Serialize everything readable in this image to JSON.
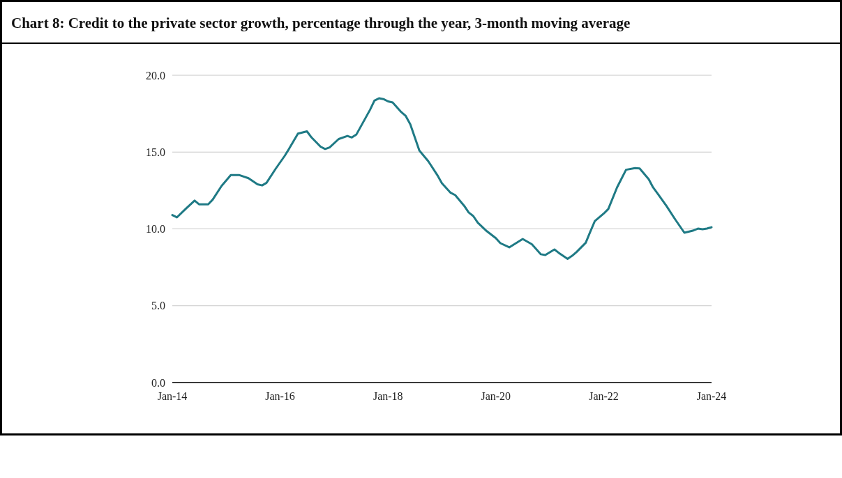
{
  "chart_data": {
    "type": "line",
    "title": "Chart 8: Credit to the private sector growth, percentage through the year, 3-month moving average",
    "x": [
      "2014-01",
      "2014-02",
      "2014-04",
      "2014-06",
      "2014-07",
      "2014-09",
      "2014-10",
      "2014-12",
      "2015-02",
      "2015-04",
      "2015-06",
      "2015-08",
      "2015-09",
      "2015-10",
      "2015-12",
      "2016-02",
      "2016-03",
      "2016-05",
      "2016-07",
      "2016-08",
      "2016-10",
      "2016-11",
      "2016-12",
      "2017-02",
      "2017-04",
      "2017-05",
      "2017-06",
      "2017-09",
      "2017-10",
      "2017-11",
      "2017-12",
      "2018-01",
      "2018-02",
      "2018-04",
      "2018-05",
      "2018-06",
      "2018-08",
      "2018-10",
      "2018-12",
      "2019-01",
      "2019-03",
      "2019-04",
      "2019-06",
      "2019-07",
      "2019-08",
      "2019-09",
      "2019-11",
      "2020-01",
      "2020-02",
      "2020-04",
      "2020-07",
      "2020-09",
      "2020-11",
      "2020-12",
      "2021-02",
      "2021-03",
      "2021-05",
      "2021-06",
      "2021-07",
      "2021-09",
      "2021-10",
      "2021-11",
      "2022-01",
      "2022-02",
      "2022-04",
      "2022-06",
      "2022-08",
      "2022-09",
      "2022-11",
      "2022-12",
      "2023-01",
      "2023-03",
      "2023-05",
      "2023-07",
      "2023-09",
      "2023-10",
      "2023-11",
      "2023-12",
      "2024-01"
    ],
    "series": [
      {
        "color": "#1f7a85",
        "values": [
          10.9,
          10.75,
          11.3,
          11.84,
          11.6,
          11.6,
          11.9,
          12.8,
          13.5,
          13.5,
          13.3,
          12.9,
          12.83,
          13.0,
          13.9,
          14.75,
          15.2,
          16.2,
          16.35,
          15.95,
          15.35,
          15.2,
          15.3,
          15.85,
          16.05,
          15.95,
          16.15,
          17.75,
          18.35,
          18.5,
          18.45,
          18.3,
          18.23,
          17.6,
          17.35,
          16.8,
          15.1,
          14.4,
          13.5,
          12.97,
          12.35,
          12.2,
          11.5,
          11.07,
          10.84,
          10.4,
          9.85,
          9.4,
          9.07,
          8.8,
          9.34,
          9.0,
          8.35,
          8.3,
          8.66,
          8.45,
          8.05,
          8.25,
          8.5,
          9.1,
          9.8,
          10.5,
          11.0,
          11.3,
          12.7,
          13.85,
          13.96,
          13.93,
          13.24,
          12.7,
          12.3,
          11.5,
          10.6,
          9.75,
          9.9,
          10.02,
          9.98,
          10.02,
          10.11
        ]
      }
    ],
    "xlim": [
      "2014-01",
      "2024-01"
    ],
    "xticks": [
      {
        "value": "2014-01",
        "label": "Jan-14"
      },
      {
        "value": "2016-01",
        "label": "Jan-16"
      },
      {
        "value": "2018-01",
        "label": "Jan-18"
      },
      {
        "value": "2020-01",
        "label": "Jan-20"
      },
      {
        "value": "2022-01",
        "label": "Jan-22"
      },
      {
        "value": "2024-01",
        "label": "Jan-24"
      }
    ],
    "ylim": [
      0,
      20
    ],
    "yticks": [
      {
        "value": 0,
        "label": "0.0"
      },
      {
        "value": 5,
        "label": "5.0"
      },
      {
        "value": 10,
        "label": "10.0"
      },
      {
        "value": 15,
        "label": "15.0"
      },
      {
        "value": 20,
        "label": "20.0"
      }
    ],
    "grid": "y"
  }
}
